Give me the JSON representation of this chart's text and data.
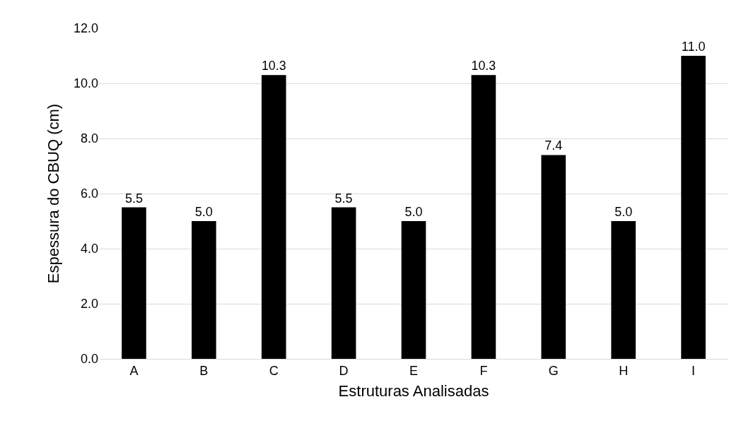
{
  "chart_data": {
    "type": "bar",
    "xlabel": "Estruturas Analisadas",
    "ylabel": "Espessura do CBUQ (cm)",
    "categories": [
      "A",
      "B",
      "C",
      "D",
      "E",
      "F",
      "G",
      "H",
      "I"
    ],
    "values": [
      5.5,
      5.0,
      10.3,
      5.5,
      5.0,
      10.3,
      7.4,
      5.0,
      11.0
    ],
    "value_labels": [
      "5.5",
      "5.0",
      "10.3",
      "5.5",
      "5.0",
      "10.3",
      "7.4",
      "5.0",
      "11.0"
    ],
    "color": "#000000",
    "ylim": [
      0,
      12
    ],
    "yticks": [
      {
        "value": 0,
        "label": "0.0"
      },
      {
        "value": 2,
        "label": "2.0"
      },
      {
        "value": 4,
        "label": "4.0"
      },
      {
        "value": 6,
        "label": "6.0"
      },
      {
        "value": 8,
        "label": "8.0"
      },
      {
        "value": 10,
        "label": "10.0"
      },
      {
        "value": 12,
        "label": "12.0"
      }
    ],
    "grid": "y"
  }
}
